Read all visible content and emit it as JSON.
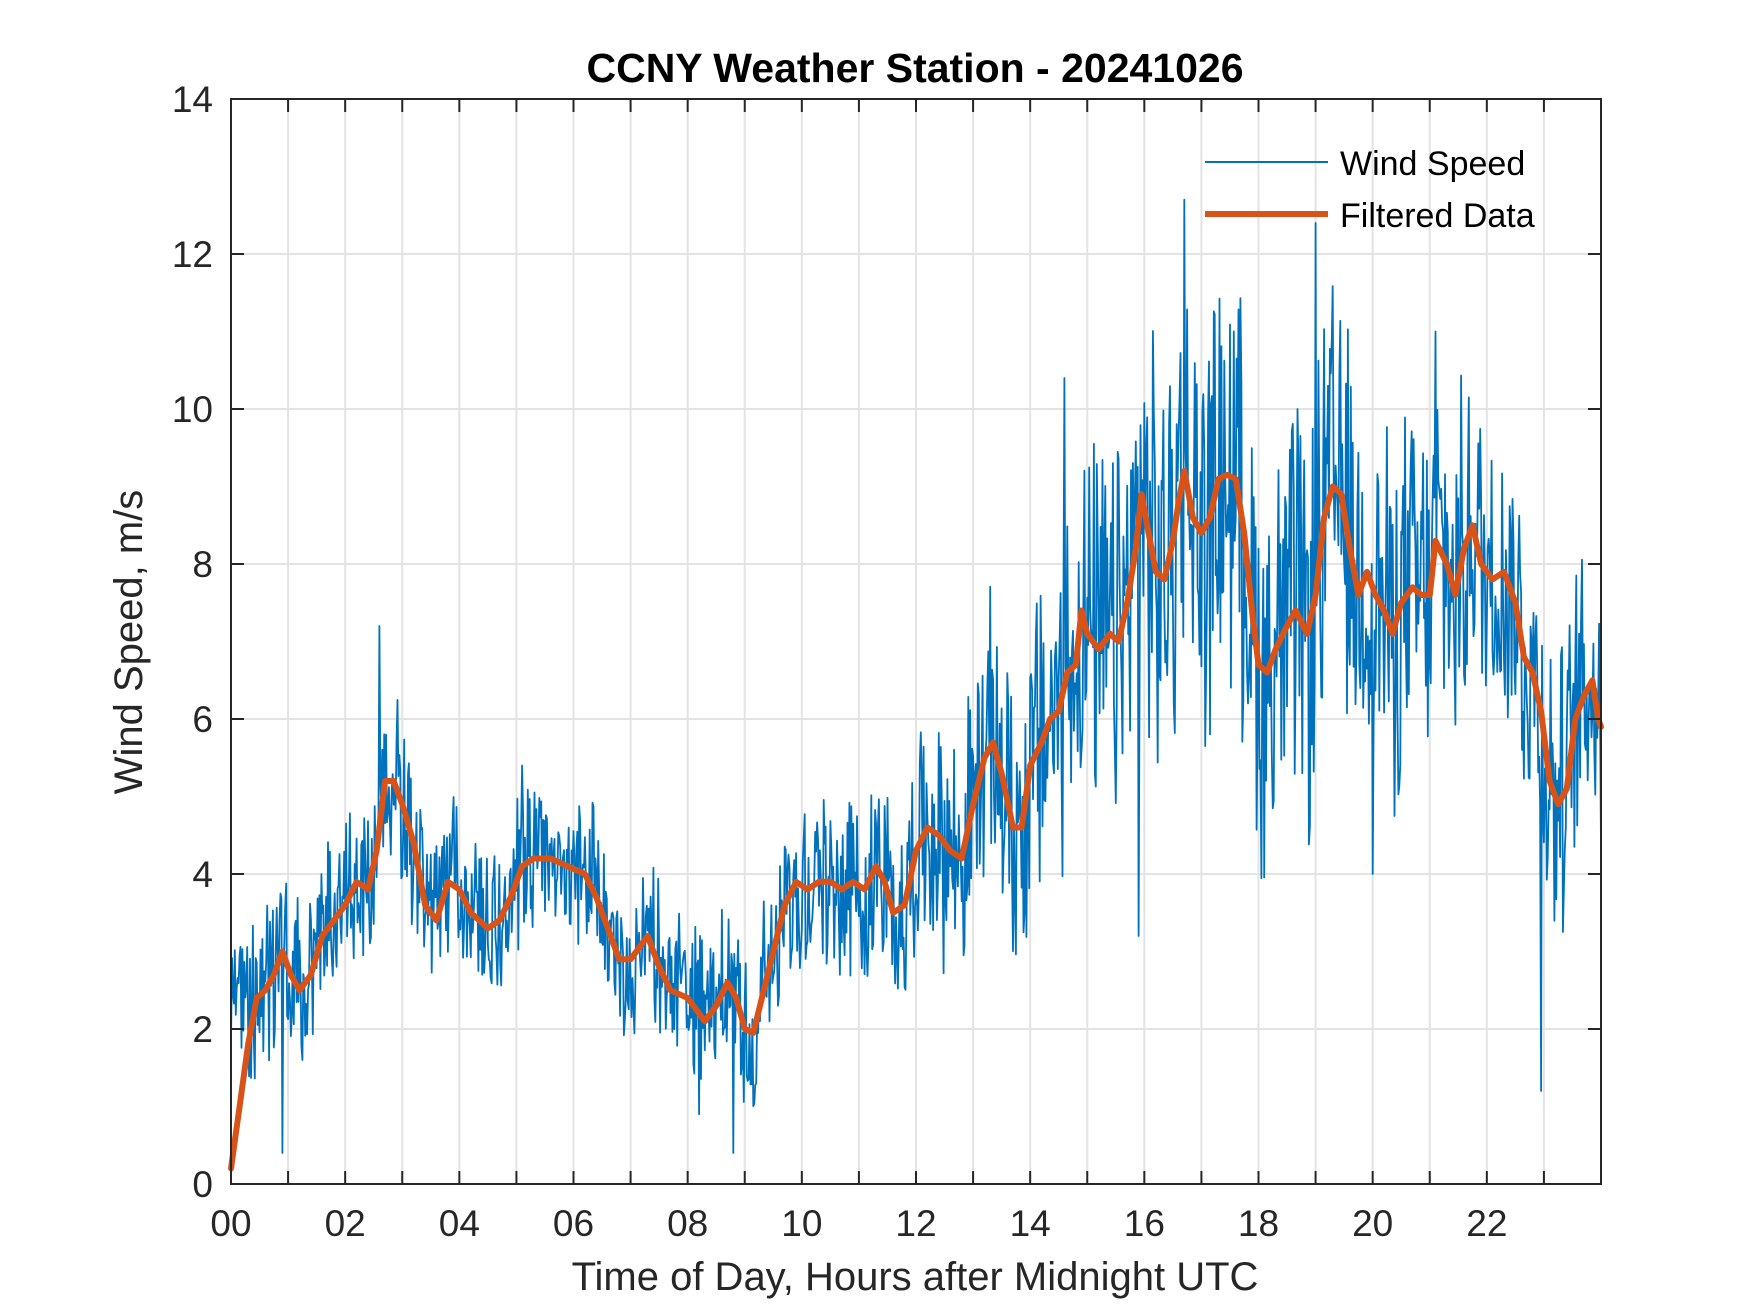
{
  "chart_data": {
    "type": "line",
    "title": "CCNY Weather Station - 20241026",
    "xlabel": "Time of Day, Hours after Midnight UTC",
    "ylabel": "Wind Speed, m/s",
    "xlim": [
      0,
      24
    ],
    "ylim": [
      0,
      14
    ],
    "xticks": [
      0,
      2,
      4,
      6,
      8,
      10,
      12,
      14,
      16,
      18,
      20,
      22
    ],
    "xtick_labels": [
      "00",
      "02",
      "04",
      "06",
      "08",
      "10",
      "12",
      "14",
      "16",
      "18",
      "20",
      "22"
    ],
    "yticks": [
      0,
      2,
      4,
      6,
      8,
      10,
      12,
      14
    ],
    "ytick_labels": [
      "0",
      "2",
      "4",
      "6",
      "8",
      "10",
      "12",
      "14"
    ],
    "grid": true,
    "minor_x_grid_step_hours": 1,
    "legend_position": "top-right",
    "series": [
      {
        "name": "Wind Speed",
        "color": "#0072BD",
        "style": "thin-line",
        "note": "high-frequency raw samples; approximated as filtered trend plus noise, envelope values read from plot",
        "noise_amplitude": [
          {
            "x": 0,
            "amp": 1.2
          },
          {
            "x": 6,
            "amp": 1.0
          },
          {
            "x": 9,
            "amp": 1.1
          },
          {
            "x": 12,
            "amp": 1.3
          },
          {
            "x": 14,
            "amp": 2.0
          },
          {
            "x": 16,
            "amp": 2.6
          },
          {
            "x": 19,
            "amp": 2.6
          },
          {
            "x": 22,
            "amp": 2.0
          },
          {
            "x": 24,
            "amp": 1.8
          }
        ],
        "notable_peaks": [
          {
            "x": 2.6,
            "y": 7.2
          },
          {
            "x": 5.1,
            "y": 5.4
          },
          {
            "x": 16.7,
            "y": 12.7
          },
          {
            "x": 19.0,
            "y": 12.4
          },
          {
            "x": 14.6,
            "y": 10.4
          },
          {
            "x": 21.1,
            "y": 11.0
          }
        ],
        "notable_minima": [
          {
            "x": 0.9,
            "y": 0.4
          },
          {
            "x": 8.2,
            "y": 0.9
          },
          {
            "x": 8.8,
            "y": 0.4
          },
          {
            "x": 15.9,
            "y": 3.2
          },
          {
            "x": 20.0,
            "y": 4.0
          },
          {
            "x": 22.95,
            "y": 1.2
          }
        ]
      },
      {
        "name": "Filtered Data",
        "color": "#D95319",
        "style": "thick-line",
        "points": [
          [
            0.0,
            0.2
          ],
          [
            0.15,
            1.0
          ],
          [
            0.3,
            1.8
          ],
          [
            0.45,
            2.4
          ],
          [
            0.6,
            2.5
          ],
          [
            0.75,
            2.7
          ],
          [
            0.9,
            3.0
          ],
          [
            1.05,
            2.7
          ],
          [
            1.2,
            2.5
          ],
          [
            1.4,
            2.7
          ],
          [
            1.6,
            3.2
          ],
          [
            1.8,
            3.4
          ],
          [
            2.0,
            3.6
          ],
          [
            2.2,
            3.9
          ],
          [
            2.4,
            3.8
          ],
          [
            2.55,
            4.3
          ],
          [
            2.7,
            5.2
          ],
          [
            2.85,
            5.2
          ],
          [
            3.0,
            4.9
          ],
          [
            3.2,
            4.4
          ],
          [
            3.4,
            3.6
          ],
          [
            3.6,
            3.4
          ],
          [
            3.8,
            3.9
          ],
          [
            4.0,
            3.8
          ],
          [
            4.2,
            3.5
          ],
          [
            4.5,
            3.3
          ],
          [
            4.7,
            3.4
          ],
          [
            4.9,
            3.7
          ],
          [
            5.1,
            4.1
          ],
          [
            5.3,
            4.2
          ],
          [
            5.6,
            4.2
          ],
          [
            5.9,
            4.1
          ],
          [
            6.2,
            4.0
          ],
          [
            6.4,
            3.7
          ],
          [
            6.6,
            3.3
          ],
          [
            6.8,
            2.9
          ],
          [
            7.0,
            2.9
          ],
          [
            7.2,
            3.1
          ],
          [
            7.3,
            3.2
          ],
          [
            7.5,
            2.8
          ],
          [
            7.7,
            2.5
          ],
          [
            8.0,
            2.4
          ],
          [
            8.3,
            2.1
          ],
          [
            8.5,
            2.3
          ],
          [
            8.7,
            2.6
          ],
          [
            8.85,
            2.4
          ],
          [
            9.0,
            2.0
          ],
          [
            9.15,
            1.95
          ],
          [
            9.3,
            2.4
          ],
          [
            9.5,
            3.0
          ],
          [
            9.7,
            3.6
          ],
          [
            9.9,
            3.9
          ],
          [
            10.1,
            3.8
          ],
          [
            10.3,
            3.9
          ],
          [
            10.5,
            3.9
          ],
          [
            10.7,
            3.8
          ],
          [
            10.9,
            3.9
          ],
          [
            11.1,
            3.8
          ],
          [
            11.3,
            4.1
          ],
          [
            11.45,
            3.9
          ],
          [
            11.6,
            3.5
          ],
          [
            11.8,
            3.6
          ],
          [
            12.0,
            4.3
          ],
          [
            12.2,
            4.6
          ],
          [
            12.4,
            4.5
          ],
          [
            12.6,
            4.3
          ],
          [
            12.8,
            4.2
          ],
          [
            13.0,
            4.9
          ],
          [
            13.2,
            5.5
          ],
          [
            13.35,
            5.7
          ],
          [
            13.5,
            5.3
          ],
          [
            13.7,
            4.6
          ],
          [
            13.85,
            4.6
          ],
          [
            14.0,
            5.4
          ],
          [
            14.2,
            5.7
          ],
          [
            14.35,
            6.0
          ],
          [
            14.5,
            6.1
          ],
          [
            14.65,
            6.6
          ],
          [
            14.8,
            6.7
          ],
          [
            14.9,
            7.4
          ],
          [
            15.0,
            7.1
          ],
          [
            15.2,
            6.9
          ],
          [
            15.4,
            7.1
          ],
          [
            15.55,
            7.0
          ],
          [
            15.7,
            7.5
          ],
          [
            15.85,
            8.2
          ],
          [
            15.95,
            8.9
          ],
          [
            16.05,
            8.5
          ],
          [
            16.2,
            7.9
          ],
          [
            16.35,
            7.8
          ],
          [
            16.5,
            8.3
          ],
          [
            16.6,
            8.8
          ],
          [
            16.7,
            9.2
          ],
          [
            16.85,
            8.6
          ],
          [
            17.0,
            8.4
          ],
          [
            17.15,
            8.6
          ],
          [
            17.3,
            9.1
          ],
          [
            17.45,
            9.15
          ],
          [
            17.6,
            9.1
          ],
          [
            17.75,
            8.4
          ],
          [
            17.9,
            7.3
          ],
          [
            18.0,
            6.7
          ],
          [
            18.15,
            6.6
          ],
          [
            18.3,
            6.9
          ],
          [
            18.5,
            7.2
          ],
          [
            18.65,
            7.4
          ],
          [
            18.85,
            7.1
          ],
          [
            19.0,
            7.6
          ],
          [
            19.15,
            8.6
          ],
          [
            19.3,
            9.0
          ],
          [
            19.45,
            8.9
          ],
          [
            19.6,
            8.2
          ],
          [
            19.75,
            7.6
          ],
          [
            19.9,
            7.9
          ],
          [
            20.05,
            7.6
          ],
          [
            20.2,
            7.4
          ],
          [
            20.35,
            7.1
          ],
          [
            20.5,
            7.5
          ],
          [
            20.7,
            7.7
          ],
          [
            20.85,
            7.6
          ],
          [
            21.0,
            7.6
          ],
          [
            21.1,
            8.3
          ],
          [
            21.3,
            8.0
          ],
          [
            21.45,
            7.6
          ],
          [
            21.6,
            8.2
          ],
          [
            21.75,
            8.5
          ],
          [
            21.9,
            8.0
          ],
          [
            22.1,
            7.8
          ],
          [
            22.3,
            7.9
          ],
          [
            22.5,
            7.5
          ],
          [
            22.65,
            6.8
          ],
          [
            22.8,
            6.6
          ],
          [
            22.95,
            6.1
          ],
          [
            23.1,
            5.2
          ],
          [
            23.25,
            4.9
          ],
          [
            23.4,
            5.1
          ],
          [
            23.55,
            6.0
          ],
          [
            23.7,
            6.3
          ],
          [
            23.85,
            6.5
          ],
          [
            23.95,
            6.0
          ],
          [
            24.0,
            5.9
          ]
        ]
      }
    ]
  }
}
